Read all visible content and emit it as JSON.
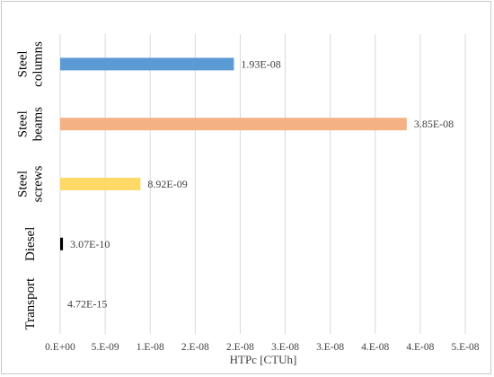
{
  "chart_data": {
    "type": "bar",
    "orientation": "horizontal",
    "categories": [
      [
        "Steel",
        "columns"
      ],
      [
        "Steel",
        "beams"
      ],
      [
        "Steel",
        "screws"
      ],
      [
        "Diesel"
      ],
      [
        "Transport"
      ]
    ],
    "values": [
      1.93e-08,
      3.85e-08,
      8.92e-09,
      3.07e-10,
      4.72e-15
    ],
    "data_labels": [
      "1.93E-08",
      "3.85E-08",
      "8.92E-09",
      "3.07E-10",
      "4.72E-15"
    ],
    "colors": [
      "#5b9bd5",
      "#f4b183",
      "#ffd966",
      "#000000",
      "#000000"
    ],
    "xlabel": "HTPc [CTUh]",
    "xlim": [
      0,
      4.5e-08
    ],
    "x_ticks": [
      0,
      5e-09,
      1e-08,
      1.5e-08,
      2e-08,
      2.5e-08,
      3e-08,
      3.5e-08,
      4e-08,
      4.5e-08
    ],
    "x_tick_labels": [
      "0.E+00",
      "5.E-09",
      "1.E-08",
      "2.E-08",
      "2.E-08",
      "3.E-08",
      "3.E-08",
      "4.E-08",
      "4.E-08",
      "5.E-08"
    ],
    "grid": "vertical",
    "gridline_color": "#d9d9d9"
  }
}
